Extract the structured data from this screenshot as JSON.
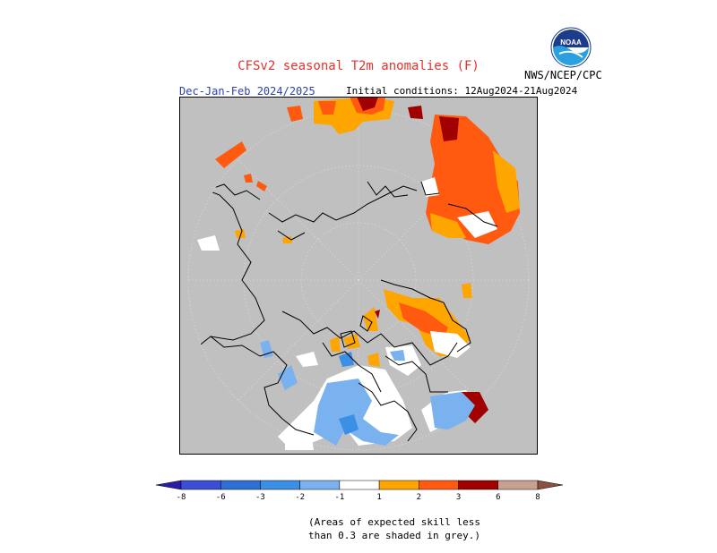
{
  "title": "CFSv2 seasonal T2m anomalies (F)",
  "season": "Dec-Jan-Feb 2024/2025",
  "initial_conditions": "Initial conditions: 12Aug2024-21Aug2024",
  "agency": "NWS/NCEP/CPC",
  "logo_text": "NOAA",
  "colors": {
    "title": "#e8312a",
    "season": "#2a3fb5",
    "no_skill_grey": "#c0c0c0",
    "land_outline": "#000000"
  },
  "legend": {
    "labels": [
      "-8",
      "-6",
      "-3",
      "-2",
      "-1",
      "1",
      "2",
      "3",
      "6",
      "8"
    ],
    "colors": [
      "#2a1ea8",
      "#3b4fd6",
      "#2d6fd2",
      "#3b90e6",
      "#7ab2f0",
      "#ffffff",
      "#ffa500",
      "#ff5a10",
      "#a00000",
      "#c8a090",
      "#8a5040"
    ]
  },
  "footnote": {
    "line1": "(Areas of expected skill less",
    "line2": "than 0.3 are shaded in grey.)"
  }
}
